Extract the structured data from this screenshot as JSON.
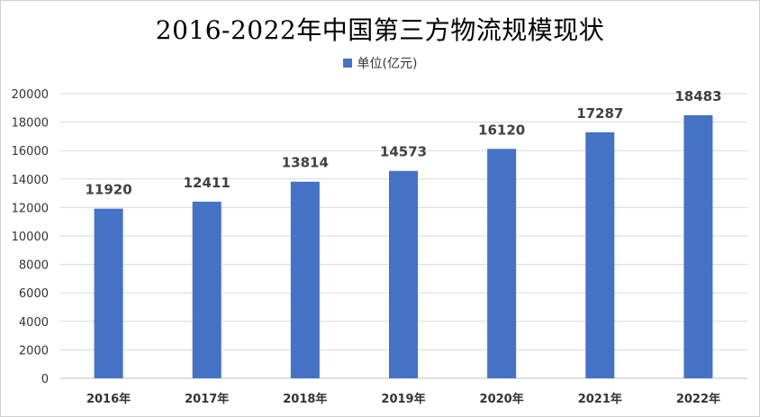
{
  "chart_data": {
    "type": "bar",
    "title": "2016-2022年中国第三方物流规模现状",
    "categories": [
      "2016年",
      "2017年",
      "2018年",
      "2019年",
      "2020年",
      "2021年",
      "2022年"
    ],
    "series": [
      {
        "name": "单位(亿元)",
        "values": [
          11920,
          12411,
          13814,
          14573,
          16120,
          17287,
          18483
        ]
      }
    ],
    "ylim": [
      0,
      20000
    ],
    "yticks": [
      0,
      2000,
      4000,
      6000,
      8000,
      10000,
      12000,
      14000,
      16000,
      18000,
      20000
    ],
    "grid": true,
    "legend_position": "top",
    "bar_color": "#4472c4",
    "grid_color": "#d9d9d9"
  }
}
